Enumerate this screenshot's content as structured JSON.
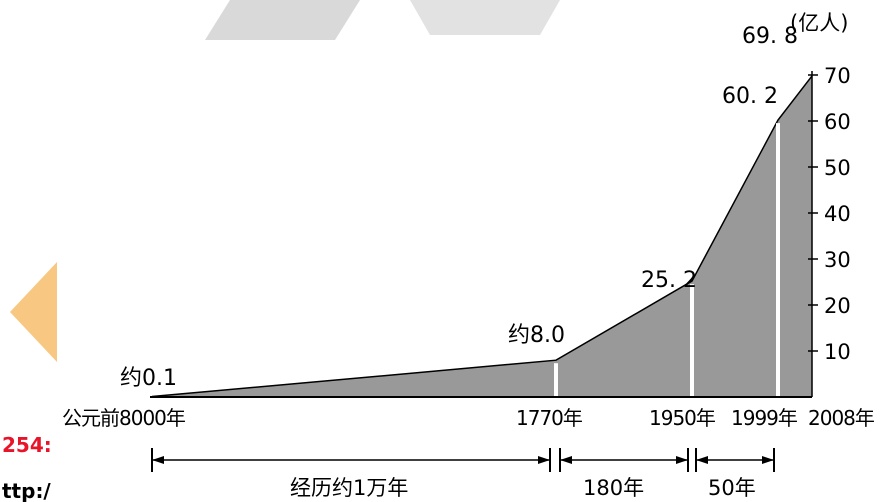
{
  "chart_data": {
    "type": "area",
    "title": "",
    "xlabel": "",
    "ylabel": "",
    "y_unit": "(亿人)",
    "ylim": [
      0,
      70
    ],
    "y_ticks": [
      "10",
      "20",
      "30",
      "40",
      "50",
      "60",
      "70"
    ],
    "x_tick_labels": [
      "公元前8000年",
      "1770年",
      "1950年",
      "1999年",
      "2008年"
    ],
    "points": [
      {
        "x": "公元前8000年",
        "y": 0.1,
        "label": "约0.1"
      },
      {
        "x": "1770年",
        "y": 8.0,
        "label": "约8.0"
      },
      {
        "x": "1950年",
        "y": 25.2,
        "label": "25. 2"
      },
      {
        "x": "1999年",
        "y": 60.2,
        "label": "60. 2"
      },
      {
        "x": "2008年",
        "y": 69.8,
        "label": "69. 8"
      }
    ],
    "intervals": [
      {
        "from": "公元前8000年",
        "to": "1770年",
        "label": "经历约1万年"
      },
      {
        "from": "1770年",
        "to": "1950年",
        "label": "180年"
      },
      {
        "from": "1950年",
        "to": "1999年",
        "label": "50年"
      }
    ],
    "grid": false,
    "legend": "none",
    "colors": {
      "fill": "#999999",
      "line": "#000000",
      "divider": "#ffffff"
    }
  },
  "watermark": {
    "left_fragments": [
      "254:",
      "ttp:/"
    ],
    "fragment_color": "#e8142a",
    "logo_color": "#f7c173"
  }
}
